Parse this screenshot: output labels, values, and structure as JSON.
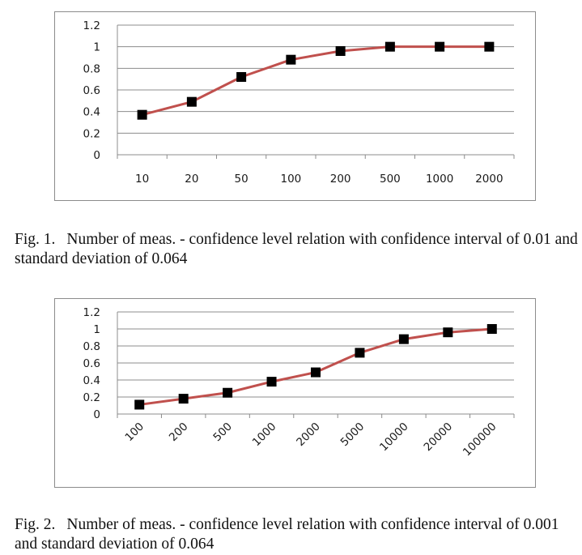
{
  "colors": {
    "line": "#c0504d",
    "marker": "#000000",
    "grid": "#8c8c8c",
    "frame": "#8c8c8c"
  },
  "chart_data": [
    {
      "type": "line",
      "categories": [
        "10",
        "20",
        "50",
        "100",
        "200",
        "500",
        "1000",
        "2000"
      ],
      "series": [
        {
          "values": [
            0.37,
            0.49,
            0.72,
            0.88,
            0.96,
            1.0,
            1.0,
            1.0
          ]
        }
      ],
      "y_ticks": [
        "0",
        "0.2",
        "0.4",
        "0.6",
        "0.8",
        "1",
        "1.2"
      ],
      "ylim": [
        0,
        1.2
      ],
      "grid": true,
      "legend": "none",
      "x_label_rotation": "none"
    },
    {
      "type": "line",
      "categories": [
        "100",
        "200",
        "500",
        "1000",
        "2000",
        "5000",
        "10000",
        "20000",
        "100000"
      ],
      "series": [
        {
          "values": [
            0.11,
            0.18,
            0.25,
            0.38,
            0.49,
            0.72,
            0.88,
            0.96,
            1.0
          ]
        }
      ],
      "y_ticks": [
        "0",
        "0.2",
        "0.4",
        "0.6",
        "0.8",
        "1",
        "1.2"
      ],
      "ylim": [
        0,
        1.2
      ],
      "grid": true,
      "legend": "none",
      "x_label_rotation": "diagonal"
    }
  ],
  "captions": [
    {
      "number": "Fig. 1.",
      "text": "Number of meas. - confidence level relation with confidence interval of 0.01 and standard deviation of 0.064"
    },
    {
      "number": "Fig. 2.",
      "text": "Number of meas. - confidence level relation with confidence interval of 0.001 and standard deviation of 0.064"
    }
  ]
}
